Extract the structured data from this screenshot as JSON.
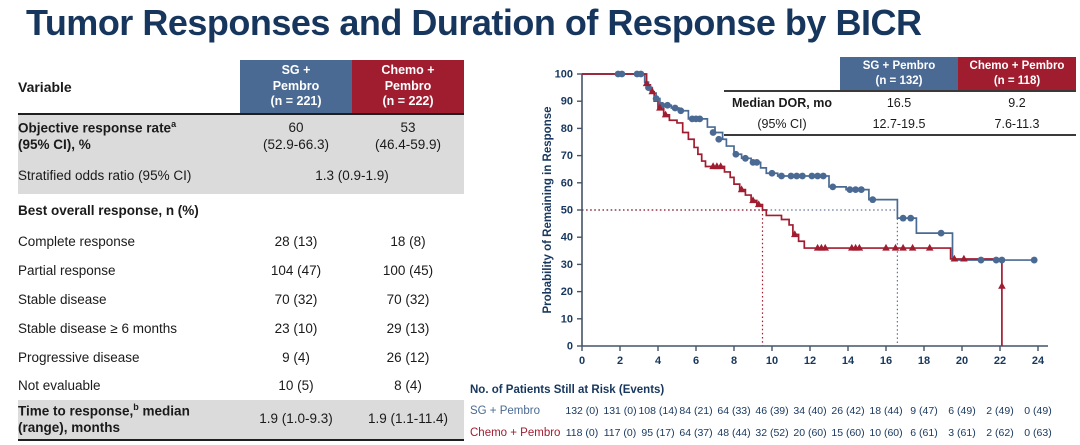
{
  "title": "Tumor Responses and Duration of Response by BICR",
  "colors": {
    "title_navy": "#17365D",
    "sg_blue": "#4A6A94",
    "chemo_red": "#A01D30",
    "gray_row": "#DBDBDB",
    "axis": "#44546A",
    "tick_label": "#17375E"
  },
  "left_table": {
    "variable_header": "Variable",
    "col1_header": "SG +\nPembro\n(n = 221)",
    "col2_header": "Chemo +\nPembro\n(n = 222)",
    "orr": {
      "label": "Objective response rate",
      "sup": "a",
      "label2": "(95% CI), %",
      "v1a": "60",
      "v1b": "(52.9-66.3)",
      "v2a": "53",
      "v2b": "(46.4-59.9)"
    },
    "odds": {
      "label": "Stratified odds ratio (95% CI)",
      "value": "1.3 (0.9-1.9)"
    },
    "bor": {
      "label": "Best overall response, n (%)"
    },
    "cr": {
      "label": "Complete response",
      "v1": "28 (13)",
      "v2": "18 (8)"
    },
    "pr": {
      "label": "Partial response",
      "v1": "104 (47)",
      "v2": "100 (45)"
    },
    "sd": {
      "label": "Stable disease",
      "v1": "70 (32)",
      "v2": "70 (32)"
    },
    "sd6": {
      "label": "Stable disease ≥ 6 months",
      "v1": "23 (10)",
      "v2": "29 (13)"
    },
    "pd": {
      "label": "Progressive disease",
      "v1": "9 (4)",
      "v2": "26 (12)"
    },
    "ne": {
      "label": "Not evaluable",
      "v1": "10 (5)",
      "v2": "8 (4)"
    },
    "ttr": {
      "label_pre": "Time to response,",
      "sup": "b",
      "label_post": " median",
      "label2": "(range), months",
      "v1": "1.9 (1.0-9.3)",
      "v2": "1.9 (1.1-11.4)"
    }
  },
  "chart_data": {
    "type": "line",
    "subtype": "kaplan-meier-step",
    "title": "",
    "xlabel": "",
    "ylabel": "Probability of Remaining in Response",
    "xlim": [
      0,
      24
    ],
    "ylim": [
      0,
      100
    ],
    "xticks": [
      0,
      2,
      4,
      6,
      8,
      10,
      12,
      14,
      16,
      18,
      20,
      22,
      24
    ],
    "yticks": [
      0,
      10,
      20,
      30,
      40,
      50,
      60,
      70,
      80,
      90,
      100
    ],
    "grid": false,
    "median_reference_value": 50,
    "series": [
      {
        "name": "SG + Pembro",
        "n": 132,
        "color": "#4A6A94",
        "median_line_color": "#5F7596",
        "marker": "circle",
        "median_dor_mo": 16.5,
        "median_line_x": 16.6,
        "steps": [
          [
            3.3,
            97
          ],
          [
            3.5,
            95
          ],
          [
            3.7,
            93
          ],
          [
            3.9,
            91
          ],
          [
            4.1,
            88.5
          ],
          [
            4.7,
            87.5
          ],
          [
            5.1,
            86.5
          ],
          [
            5.6,
            83.5
          ],
          [
            6.6,
            80.5
          ],
          [
            7.0,
            78.5
          ],
          [
            7.4,
            76
          ],
          [
            7.6,
            73.5
          ],
          [
            8.0,
            70.5
          ],
          [
            8.4,
            69
          ],
          [
            8.9,
            67.5
          ],
          [
            9.4,
            65.5
          ],
          [
            9.7,
            63.5
          ],
          [
            10.3,
            62.5
          ],
          [
            13.0,
            58.5
          ],
          [
            13.9,
            57.5
          ],
          [
            15.1,
            53.8
          ],
          [
            16.6,
            47
          ],
          [
            17.6,
            41.5
          ],
          [
            19.5,
            31.6
          ]
        ],
        "end_x": 23.9,
        "censors": [
          [
            1.9,
            100
          ],
          [
            2.1,
            100
          ],
          [
            2.9,
            100
          ],
          [
            3.1,
            100
          ],
          [
            3.5,
            95
          ],
          [
            3.9,
            91
          ],
          [
            4.2,
            88.5
          ],
          [
            4.5,
            88.5
          ],
          [
            4.9,
            87.5
          ],
          [
            5.2,
            86.5
          ],
          [
            5.8,
            83.5
          ],
          [
            6.0,
            83.5
          ],
          [
            6.2,
            83.5
          ],
          [
            6.9,
            78.5
          ],
          [
            7.2,
            76
          ],
          [
            8.1,
            70.5
          ],
          [
            8.6,
            69
          ],
          [
            9.0,
            67.5
          ],
          [
            9.2,
            67.5
          ],
          [
            10.0,
            63.5
          ],
          [
            10.5,
            62.5
          ],
          [
            11.0,
            62.5
          ],
          [
            11.3,
            62.5
          ],
          [
            11.6,
            62.5
          ],
          [
            12.1,
            62.5
          ],
          [
            12.4,
            62.5
          ],
          [
            12.7,
            62.5
          ],
          [
            13.2,
            58.5
          ],
          [
            14.1,
            57.5
          ],
          [
            14.4,
            57.5
          ],
          [
            14.7,
            57.5
          ],
          [
            15.3,
            53.8
          ],
          [
            16.9,
            47
          ],
          [
            17.3,
            47
          ],
          [
            18.9,
            41.5
          ],
          [
            21.0,
            31.6
          ],
          [
            21.8,
            31.6
          ],
          [
            22.1,
            31.6
          ],
          [
            23.8,
            31.6
          ]
        ]
      },
      {
        "name": "Chemo + Pembro",
        "n": 118,
        "color": "#A01D30",
        "median_line_color": "#A01D30",
        "marker": "triangle",
        "median_dor_mo": 9.2,
        "median_line_x": 9.5,
        "steps": [
          [
            3.4,
            96
          ],
          [
            3.6,
            93.5
          ],
          [
            3.8,
            90
          ],
          [
            4.0,
            87.5
          ],
          [
            4.3,
            85
          ],
          [
            4.6,
            83
          ],
          [
            5.0,
            82
          ],
          [
            5.3,
            78.5
          ],
          [
            5.6,
            76
          ],
          [
            5.9,
            73
          ],
          [
            6.1,
            70.5
          ],
          [
            6.3,
            68
          ],
          [
            6.5,
            66
          ],
          [
            7.5,
            64
          ],
          [
            7.8,
            62
          ],
          [
            8.0,
            59.5
          ],
          [
            8.3,
            57.5
          ],
          [
            8.6,
            55.5
          ],
          [
            8.9,
            53.5
          ],
          [
            9.2,
            52
          ],
          [
            9.5,
            50
          ],
          [
            9.7,
            48
          ],
          [
            10.5,
            46.5
          ],
          [
            10.9,
            44.5
          ],
          [
            11.1,
            41
          ],
          [
            11.4,
            38.5
          ],
          [
            11.7,
            36
          ],
          [
            19.4,
            32
          ],
          [
            22.1,
            0
          ]
        ],
        "end_x": 22.1,
        "censors": [
          [
            3.4,
            96.5
          ],
          [
            3.7,
            93.5
          ],
          [
            4.1,
            87.5
          ],
          [
            4.4,
            85
          ],
          [
            6.9,
            66
          ],
          [
            7.1,
            66
          ],
          [
            7.3,
            66
          ],
          [
            8.4,
            57.5
          ],
          [
            9.0,
            53.5
          ],
          [
            9.3,
            52
          ],
          [
            11.2,
            41
          ],
          [
            12.4,
            36
          ],
          [
            12.6,
            36
          ],
          [
            12.8,
            36
          ],
          [
            14.2,
            36
          ],
          [
            14.4,
            36
          ],
          [
            14.6,
            36
          ],
          [
            16.0,
            36
          ],
          [
            16.5,
            36
          ],
          [
            16.9,
            36
          ],
          [
            17.4,
            36
          ],
          [
            18.3,
            36
          ],
          [
            19.6,
            32
          ],
          [
            20.1,
            32
          ],
          [
            22.1,
            22
          ]
        ]
      }
    ],
    "inset_table": {
      "col_headers": [
        "SG + Pembro\n(n = 132)",
        "Chemo + Pembro\n(n = 118)"
      ],
      "rows": [
        {
          "label": "Median DOR, mo",
          "v1": "16.5",
          "v2": "9.2"
        },
        {
          "label": "(95% CI)",
          "v1": "12.7-19.5",
          "v2": "7.6-11.3"
        }
      ]
    },
    "risk_table": {
      "title": "No. of Patients Still at Risk (Events)",
      "rows": [
        {
          "name": "SG + Pembro",
          "color": "#4A6A94",
          "values": [
            "132 (0)",
            "131 (0)",
            "108 (14)",
            "84 (21)",
            "64 (33)",
            "46 (39)",
            "34 (40)",
            "26 (42)",
            "18 (44)",
            "9 (47)",
            "6 (49)",
            "2 (49)",
            "0 (49)"
          ]
        },
        {
          "name": "Chemo + Pembro",
          "color": "#A01D30",
          "values": [
            "118 (0)",
            "117 (0)",
            "95 (17)",
            "64 (37)",
            "48 (44)",
            "32 (52)",
            "20 (60)",
            "15 (60)",
            "10 (60)",
            "6 (61)",
            "3 (61)",
            "2 (62)",
            "0 (63)"
          ]
        }
      ]
    }
  }
}
